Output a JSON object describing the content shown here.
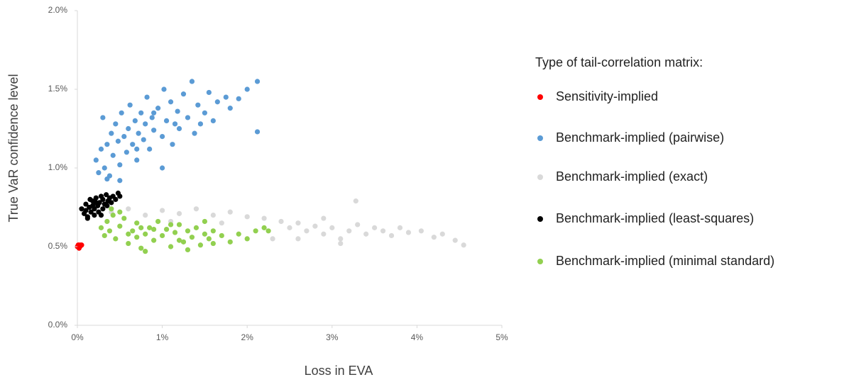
{
  "chart_data": {
    "type": "scatter",
    "x_label": "Loss in EVA",
    "y_label": "True VaR confidence level",
    "legend_title": "Type of tail-correlation matrix:",
    "legend_position": "right",
    "xlim": [
      0,
      5
    ],
    "ylim": [
      0,
      2
    ],
    "xticks": [
      {
        "value": 0,
        "label": "0%"
      },
      {
        "value": 1,
        "label": "1%"
      },
      {
        "value": 2,
        "label": "2%"
      },
      {
        "value": 3,
        "label": "3%"
      },
      {
        "value": 4,
        "label": "4%"
      },
      {
        "value": 5,
        "label": "5%"
      }
    ],
    "yticks": [
      {
        "value": 0,
        "label": "0.0%"
      },
      {
        "value": 0.5,
        "label": "0.5%"
      },
      {
        "value": 1,
        "label": "1.0%"
      },
      {
        "value": 1.5,
        "label": "1.5%"
      },
      {
        "value": 2,
        "label": "2.0%"
      }
    ],
    "series": [
      {
        "name": "Sensitivity-implied",
        "color": "#ff0000",
        "x": [
          0.0,
          0.01,
          0.02,
          0.03,
          0.04,
          0.05,
          0.02,
          0.01
        ],
        "values": [
          0.5,
          0.5,
          0.51,
          0.5,
          0.51,
          0.51,
          0.49,
          0.51
        ]
      },
      {
        "name": "Benchmark-implied (pairwise)",
        "color": "#5b9bd5",
        "x": [
          0.22,
          0.25,
          0.28,
          0.3,
          0.32,
          0.35,
          0.38,
          0.4,
          0.42,
          0.45,
          0.48,
          0.5,
          0.52,
          0.55,
          0.58,
          0.6,
          0.62,
          0.65,
          0.68,
          0.7,
          0.72,
          0.75,
          0.78,
          0.8,
          0.82,
          0.85,
          0.88,
          0.9,
          0.95,
          1.0,
          1.02,
          1.05,
          1.1,
          1.12,
          1.18,
          1.2,
          1.25,
          1.3,
          1.35,
          1.38,
          1.42,
          1.5,
          1.55,
          1.6,
          1.65,
          1.75,
          1.8,
          1.9,
          2.0,
          2.12,
          2.12,
          1.0,
          0.5,
          0.35,
          0.7,
          1.15,
          0.9,
          1.45
        ],
        "values": [
          1.05,
          0.97,
          1.12,
          1.32,
          1.0,
          1.15,
          0.95,
          1.22,
          1.08,
          1.28,
          1.17,
          1.02,
          1.35,
          1.2,
          1.1,
          1.25,
          1.4,
          1.15,
          1.3,
          1.05,
          1.22,
          1.35,
          1.18,
          1.28,
          1.45,
          1.12,
          1.32,
          1.24,
          1.38,
          1.2,
          1.5,
          1.3,
          1.42,
          1.15,
          1.36,
          1.25,
          1.47,
          1.32,
          1.55,
          1.22,
          1.4,
          1.35,
          1.48,
          1.3,
          1.42,
          1.45,
          1.38,
          1.44,
          1.5,
          1.55,
          1.23,
          1.0,
          0.92,
          0.93,
          1.12,
          1.28,
          1.35,
          1.28
        ]
      },
      {
        "name": "Benchmark-implied (exact)",
        "color": "#d9d9d9",
        "x": [
          0.4,
          0.6,
          0.8,
          1.0,
          1.2,
          1.4,
          1.6,
          1.8,
          2.0,
          2.2,
          2.4,
          2.5,
          2.6,
          2.7,
          2.8,
          2.9,
          3.0,
          3.1,
          3.2,
          3.28,
          3.3,
          3.4,
          3.5,
          3.6,
          3.7,
          3.8,
          3.9,
          4.05,
          4.2,
          4.3,
          4.45,
          4.55,
          2.3,
          2.6,
          3.1,
          1.1,
          1.7,
          2.9
        ],
        "values": [
          0.72,
          0.74,
          0.7,
          0.73,
          0.71,
          0.74,
          0.7,
          0.72,
          0.69,
          0.68,
          0.66,
          0.62,
          0.65,
          0.6,
          0.63,
          0.58,
          0.62,
          0.55,
          0.6,
          0.79,
          0.64,
          0.58,
          0.62,
          0.6,
          0.57,
          0.62,
          0.59,
          0.6,
          0.56,
          0.58,
          0.54,
          0.51,
          0.55,
          0.55,
          0.52,
          0.66,
          0.65,
          0.68
        ]
      },
      {
        "name": "Benchmark-implied (least-squares)",
        "color": "#000000",
        "x": [
          0.05,
          0.08,
          0.1,
          0.12,
          0.14,
          0.16,
          0.18,
          0.2,
          0.22,
          0.24,
          0.26,
          0.28,
          0.3,
          0.32,
          0.34,
          0.36,
          0.38,
          0.4,
          0.42,
          0.45,
          0.48,
          0.5,
          0.1,
          0.15,
          0.2,
          0.25,
          0.3,
          0.35,
          0.12,
          0.18,
          0.22,
          0.28
        ],
        "values": [
          0.74,
          0.71,
          0.77,
          0.69,
          0.75,
          0.72,
          0.79,
          0.74,
          0.81,
          0.76,
          0.78,
          0.82,
          0.8,
          0.77,
          0.83,
          0.79,
          0.81,
          0.78,
          0.82,
          0.8,
          0.84,
          0.82,
          0.73,
          0.8,
          0.7,
          0.72,
          0.74,
          0.76,
          0.68,
          0.76,
          0.78,
          0.7
        ]
      },
      {
        "name": "Benchmark-implied (minimal standard)",
        "color": "#92d050",
        "x": [
          0.28,
          0.32,
          0.35,
          0.38,
          0.42,
          0.45,
          0.5,
          0.55,
          0.6,
          0.65,
          0.7,
          0.75,
          0.8,
          0.85,
          0.9,
          0.95,
          1.0,
          1.05,
          1.1,
          1.15,
          1.2,
          1.25,
          1.3,
          1.35,
          1.4,
          1.45,
          1.5,
          1.55,
          1.6,
          1.7,
          1.8,
          1.9,
          2.0,
          2.1,
          2.2,
          2.25,
          0.5,
          0.7,
          0.9,
          1.1,
          1.3,
          1.5,
          0.4,
          0.6,
          0.8,
          1.2,
          1.6,
          0.75
        ],
        "values": [
          0.62,
          0.57,
          0.66,
          0.6,
          0.7,
          0.55,
          0.63,
          0.68,
          0.52,
          0.6,
          0.65,
          0.49,
          0.58,
          0.62,
          0.54,
          0.66,
          0.57,
          0.61,
          0.5,
          0.59,
          0.64,
          0.53,
          0.6,
          0.56,
          0.62,
          0.51,
          0.58,
          0.55,
          0.6,
          0.57,
          0.53,
          0.58,
          0.55,
          0.6,
          0.62,
          0.6,
          0.72,
          0.56,
          0.61,
          0.64,
          0.48,
          0.66,
          0.74,
          0.58,
          0.47,
          0.54,
          0.52,
          0.62
        ]
      }
    ]
  }
}
